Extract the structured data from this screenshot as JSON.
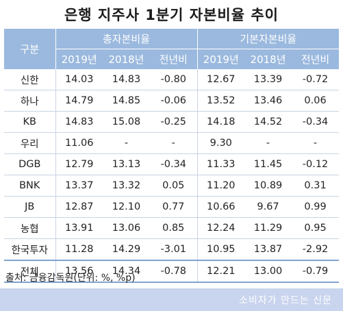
{
  "title": "은행 지주사 1분기 자본비율 추이",
  "header": {
    "row_label": "구분",
    "group1": "총자본비율",
    "group2": "기본자본비율",
    "sub": [
      "2019년",
      "2018년",
      "전년비",
      "2019년",
      "2018년",
      "전년비"
    ]
  },
  "rows": [
    {
      "label": "신한",
      "cells": [
        "14.03",
        "14.83",
        "-0.80",
        "12.67",
        "13.39",
        "-0.72"
      ]
    },
    {
      "label": "하나",
      "cells": [
        "14.79",
        "14.85",
        "-0.06",
        "13.52",
        "13.46",
        "0.06"
      ]
    },
    {
      "label": "KB",
      "cells": [
        "14.83",
        "15.08",
        "-0.25",
        "14.18",
        "14.52",
        "-0.34"
      ]
    },
    {
      "label": "우리",
      "cells": [
        "11.06",
        "-",
        "-",
        "9.30",
        "-",
        "-"
      ]
    },
    {
      "label": "DGB",
      "cells": [
        "12.79",
        "13.13",
        "-0.34",
        "11.33",
        "11.45",
        "-0.12"
      ]
    },
    {
      "label": "BNK",
      "cells": [
        "13.37",
        "13.32",
        "0.05",
        "11.20",
        "10.89",
        "0.31"
      ]
    },
    {
      "label": "JB",
      "cells": [
        "12.87",
        "12.10",
        "0.77",
        "10.66",
        "9.67",
        "0.99"
      ]
    },
    {
      "label": "농협",
      "cells": [
        "13.91",
        "13.06",
        "0.85",
        "12.24",
        "11.29",
        "0.95"
      ]
    },
    {
      "label": "한국투자",
      "cells": [
        "11.28",
        "14.29",
        "-3.01",
        "10.95",
        "13.87",
        "-2.92"
      ]
    },
    {
      "label": "전체",
      "cells": [
        "13.56",
        "14.34",
        "-0.78",
        "12.21",
        "13.00",
        "-0.79"
      ]
    }
  ],
  "source": "출처: 금융감독원(단위: %, %p)",
  "brand": "소비자가 만드는 신문",
  "colors": {
    "header_bg": "#9bb9de",
    "footer_bg": "#c9d4ee",
    "row_divider": "#c9d3e4"
  }
}
